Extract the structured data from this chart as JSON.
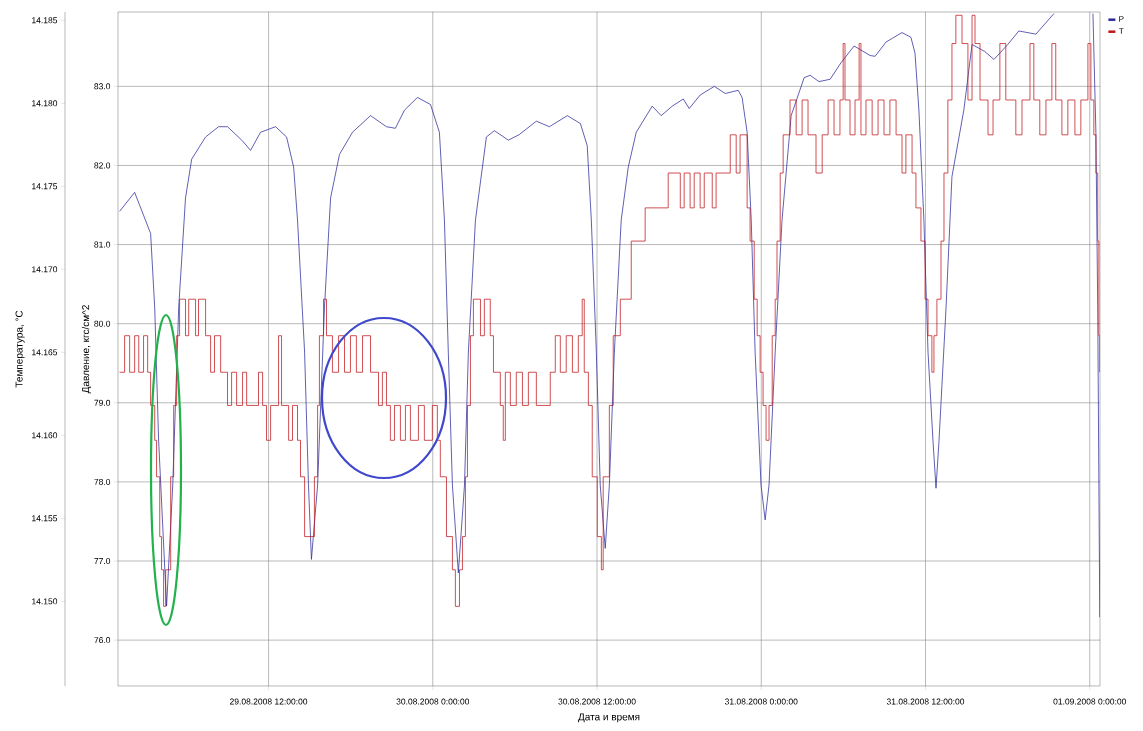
{
  "chart_data": {
    "type": "line",
    "xlabel": "Дата и время",
    "ylabel": "Давление, кгс/см^2",
    "y2label": "Температура, °C",
    "xlim": [
      "2008-08-29T01:00",
      "2008-09-01T00:45"
    ],
    "xticks": [
      {
        "value": "2008-08-29T12:00",
        "label": "29.08.2008 12:00:00"
      },
      {
        "value": "2008-08-30T00:00",
        "label": "30.08.2008 0:00:00"
      },
      {
        "value": "2008-08-30T12:00",
        "label": "30.08.2008 12:00:00"
      },
      {
        "value": "2008-08-31T00:00",
        "label": "31.08.2008 0:00:00"
      },
      {
        "value": "2008-08-31T12:00",
        "label": "31.08.2008 12:00:00"
      },
      {
        "value": "2008-09-01T00:00",
        "label": "01.09.2008 0:00:00"
      }
    ],
    "ylim": [
      75.42,
      83.94
    ],
    "yticks": [
      {
        "value": 76,
        "label": "76.0"
      },
      {
        "value": 77,
        "label": "77.0"
      },
      {
        "value": 78,
        "label": "78.0"
      },
      {
        "value": 79,
        "label": "79.0"
      },
      {
        "value": 80,
        "label": "80.0"
      },
      {
        "value": 81,
        "label": "81.0"
      },
      {
        "value": 82,
        "label": "82.0"
      },
      {
        "value": 83,
        "label": "83.0"
      }
    ],
    "y2lim": [
      14.1449,
      14.1855
    ],
    "y2ticks": [
      {
        "value": 14.15,
        "label": "14.150"
      },
      {
        "value": 14.155,
        "label": "14.155"
      },
      {
        "value": 14.16,
        "label": "14.160"
      },
      {
        "value": 14.165,
        "label": "14.165"
      },
      {
        "value": 14.17,
        "label": "14.170"
      },
      {
        "value": 14.175,
        "label": "14.175"
      },
      {
        "value": 14.18,
        "label": "14.180"
      },
      {
        "value": 14.185,
        "label": "14.185"
      }
    ],
    "grid": true,
    "legend": "top right",
    "series": [
      {
        "name": "P",
        "color": "#2b2b9c",
        "x": [
          "2008-08-29T01:07",
          "2008-08-29T02:13",
          "2008-08-29T03:23",
          "2008-08-29T03:41",
          "2008-08-29T03:58",
          "2008-08-29T04:33",
          "2008-08-29T05:00",
          "2008-08-29T05:26",
          "2008-08-29T05:56",
          "2008-08-29T06:23",
          "2008-08-29T07:24",
          "2008-08-29T08:21",
          "2008-08-29T09:00",
          "2008-08-29T10:06",
          "2008-08-29T10:41",
          "2008-08-29T11:25",
          "2008-08-29T12:31",
          "2008-08-29T13:19",
          "2008-08-29T13:50",
          "2008-08-29T14:07",
          "2008-08-29T14:38",
          "2008-08-29T14:55",
          "2008-08-29T15:08",
          "2008-08-29T15:35",
          "2008-08-29T16:05",
          "2008-08-29T16:32",
          "2008-08-29T17:11",
          "2008-08-29T18:08",
          "2008-08-29T19:27",
          "2008-08-29T20:37",
          "2008-08-29T21:16",
          "2008-08-29T21:56",
          "2008-08-29T22:53",
          "2008-08-29T23:50",
          "2008-08-30T00:29",
          "2008-08-30T00:51",
          "2008-08-30T01:08",
          "2008-08-30T01:26",
          "2008-08-30T01:52",
          "2008-08-30T02:19",
          "2008-08-30T02:36",
          "2008-08-30T03:07",
          "2008-08-30T03:55",
          "2008-08-30T04:30",
          "2008-08-30T05:31",
          "2008-08-30T06:19",
          "2008-08-30T07:34",
          "2008-08-30T08:31",
          "2008-08-30T09:50",
          "2008-08-30T10:47",
          "2008-08-30T11:17",
          "2008-08-30T11:35",
          "2008-08-30T11:57",
          "2008-08-30T12:14",
          "2008-08-30T12:36",
          "2008-08-30T12:54",
          "2008-08-30T13:16",
          "2008-08-30T13:46",
          "2008-08-30T14:17",
          "2008-08-30T14:52",
          "2008-08-30T16:02",
          "2008-08-30T16:41",
          "2008-08-30T17:30",
          "2008-08-30T18:18",
          "2008-08-30T18:44",
          "2008-08-30T19:32",
          "2008-08-30T20:34",
          "2008-08-30T21:22",
          "2008-08-30T22:19",
          "2008-08-30T22:36",
          "2008-08-30T22:58",
          "2008-08-30T23:16",
          "2008-08-30T23:33",
          "2008-08-30T23:59",
          "2008-08-31T00:17",
          "2008-08-31T00:34",
          "2008-08-31T01:01",
          "2008-08-31T01:31",
          "2008-08-31T02:11",
          "2008-08-31T03:08",
          "2008-08-31T03:34",
          "2008-08-31T04:13",
          "2008-08-31T05:02",
          "2008-08-31T05:50",
          "2008-08-31T06:47",
          "2008-08-31T07:57",
          "2008-08-31T08:19",
          "2008-08-31T09:07",
          "2008-08-31T10:17",
          "2008-08-31T10:56",
          "2008-08-31T11:14",
          "2008-08-31T11:31",
          "2008-08-31T11:53",
          "2008-08-31T12:11",
          "2008-08-31T12:33",
          "2008-08-31T12:46",
          "2008-08-31T12:59",
          "2008-08-31T13:30",
          "2008-08-31T13:56",
          "2008-08-31T14:48",
          "2008-08-31T15:24",
          "2008-08-31T16:20",
          "2008-08-31T17:00",
          "2008-08-31T18:01",
          "2008-08-31T18:49",
          "2008-08-31T20:04",
          "2008-08-31T21:23",
          "2008-08-31T22:55",
          "2008-09-01T00:14",
          "2008-09-01T00:27",
          "2008-09-01T00:35",
          "2008-09-01T00:44"
        ],
        "values": [
          81.42,
          81.66,
          81.14,
          80.2,
          78.53,
          76.43,
          77.96,
          80.2,
          81.59,
          82.08,
          82.36,
          82.49,
          82.49,
          82.31,
          82.19,
          82.42,
          82.49,
          82.36,
          81.98,
          81.31,
          79.64,
          77.96,
          77.02,
          77.96,
          80.2,
          81.59,
          82.14,
          82.42,
          82.63,
          82.49,
          82.47,
          82.7,
          82.86,
          82.77,
          82.42,
          81.31,
          79.64,
          77.96,
          76.85,
          77.96,
          79.64,
          81.31,
          82.36,
          82.44,
          82.32,
          82.39,
          82.56,
          82.49,
          82.63,
          82.53,
          82.25,
          81.31,
          79.64,
          77.96,
          77.16,
          77.96,
          79.64,
          81.31,
          81.98,
          82.42,
          82.75,
          82.63,
          82.75,
          82.84,
          82.72,
          82.89,
          83.0,
          82.91,
          82.95,
          82.86,
          82.42,
          81.31,
          79.64,
          77.96,
          77.52,
          77.96,
          79.64,
          81.31,
          82.63,
          83.11,
          83.14,
          83.06,
          83.09,
          83.3,
          83.51,
          83.39,
          83.38,
          83.56,
          83.68,
          83.62,
          83.42,
          82.7,
          81.31,
          79.64,
          78.51,
          77.92,
          78.51,
          80.2,
          81.86,
          82.7,
          83.53,
          83.44,
          83.34,
          83.53,
          83.7,
          83.66,
          83.92,
          null,
          83.92,
          82.42,
          80.2,
          76.29
        ]
      },
      {
        "name": "T",
        "color": "#c0161b",
        "type": "step",
        "axis": "y2",
        "x": [
          "2008-08-29T01:07",
          "2008-08-29T01:29",
          "2008-08-29T01:51",
          "2008-08-29T02:13",
          "2008-08-29T02:31",
          "2008-08-29T02:52",
          "2008-08-29T03:10",
          "2008-08-29T03:23",
          "2008-08-29T03:41",
          "2008-08-29T03:49",
          "2008-08-29T04:03",
          "2008-08-29T04:11",
          "2008-08-29T04:20",
          "2008-08-29T04:29",
          "2008-08-29T04:51",
          "2008-08-29T05:04",
          "2008-08-29T05:17",
          "2008-08-29T05:30",
          "2008-08-29T05:56",
          "2008-08-29T06:10",
          "2008-08-29T06:40",
          "2008-08-29T06:53",
          "2008-08-29T07:24",
          "2008-08-29T07:46",
          "2008-08-29T08:03",
          "2008-08-29T08:30",
          "2008-08-29T09:00",
          "2008-08-29T09:18",
          "2008-08-29T09:40",
          "2008-08-29T10:06",
          "2008-08-29T10:24",
          "2008-08-29T11:16",
          "2008-08-29T11:34",
          "2008-08-29T11:51",
          "2008-08-29T12:09",
          "2008-08-29T12:44",
          "2008-08-29T12:57",
          "2008-08-29T13:28",
          "2008-08-29T13:45",
          "2008-08-29T14:07",
          "2008-08-29T14:20",
          "2008-08-29T14:38",
          "2008-08-29T15:21",
          "2008-08-29T15:35",
          "2008-08-29T15:43",
          "2008-08-29T16:01",
          "2008-08-29T16:14",
          "2008-08-29T16:40",
          "2008-08-29T17:07",
          "2008-08-29T17:33",
          "2008-08-29T17:59",
          "2008-08-29T18:25",
          "2008-08-29T18:52",
          "2008-08-29T19:27",
          "2008-08-29T20:02",
          "2008-08-29T20:19",
          "2008-08-29T20:37",
          "2008-08-29T20:54",
          "2008-08-29T21:12",
          "2008-08-29T21:38",
          "2008-08-29T22:00",
          "2008-08-29T22:22",
          "2008-08-29T22:57",
          "2008-08-29T23:23",
          "2008-08-29T23:58",
          "2008-08-30T00:20",
          "2008-08-30T00:33",
          "2008-08-30T01:00",
          "2008-08-30T01:26",
          "2008-08-30T01:39",
          "2008-08-30T01:57",
          "2008-08-30T02:10",
          "2008-08-30T02:23",
          "2008-08-30T02:32",
          "2008-08-30T02:45",
          "2008-08-30T02:58",
          "2008-08-30T03:29",
          "2008-08-30T03:46",
          "2008-08-30T04:12",
          "2008-08-30T04:26",
          "2008-08-30T04:56",
          "2008-08-30T05:09",
          "2008-08-30T05:18",
          "2008-08-30T05:40",
          "2008-08-30T06:06",
          "2008-08-30T06:33",
          "2008-08-30T06:59",
          "2008-08-30T07:34",
          "2008-08-30T08:35",
          "2008-08-30T08:57",
          "2008-08-30T09:19",
          "2008-08-30T09:45",
          "2008-08-30T10:12",
          "2008-08-30T10:38",
          "2008-08-30T10:55",
          "2008-08-30T11:04",
          "2008-08-30T11:22",
          "2008-08-30T11:39",
          "2008-08-30T12:01",
          "2008-08-30T12:19",
          "2008-08-30T12:27",
          "2008-08-30T12:54",
          "2008-08-30T13:11",
          "2008-08-30T13:42",
          "2008-08-30T14:30",
          "2008-08-30T15:31",
          "2008-08-30T17:12",
          "2008-08-30T18:05",
          "2008-08-30T18:22",
          "2008-08-30T18:48",
          "2008-08-30T19:06",
          "2008-08-30T19:32",
          "2008-08-30T19:50",
          "2008-08-30T20:25",
          "2008-08-30T20:42",
          "2008-08-30T21:44",
          "2008-08-30T22:10",
          "2008-08-30T22:27",
          "2008-08-30T22:58",
          "2008-08-30T23:11",
          "2008-08-30T23:29",
          "2008-08-30T23:42",
          "2008-08-30T23:55",
          "2008-08-31T00:08",
          "2008-08-31T00:21",
          "2008-08-31T00:34",
          "2008-08-31T00:48",
          "2008-08-31T01:01",
          "2008-08-31T01:09",
          "2008-08-31T01:23",
          "2008-08-31T01:36",
          "2008-08-31T02:06",
          "2008-08-31T02:33",
          "2008-08-31T02:59",
          "2008-08-31T03:25",
          "2008-08-31T04:00",
          "2008-08-31T04:27",
          "2008-08-31T04:53",
          "2008-08-31T05:19",
          "2008-08-31T05:45",
          "2008-08-31T05:59",
          "2008-08-31T06:07",
          "2008-08-31T06:29",
          "2008-08-31T06:51",
          "2008-08-31T07:09",
          "2008-08-31T07:17",
          "2008-08-31T07:39",
          "2008-08-31T08:06",
          "2008-08-31T08:32",
          "2008-08-31T08:58",
          "2008-08-31T09:24",
          "2008-08-31T09:51",
          "2008-08-31T10:17",
          "2008-08-31T10:34",
          "2008-08-31T11:01",
          "2008-08-31T11:18",
          "2008-08-31T11:40",
          "2008-08-31T11:58",
          "2008-08-31T12:11",
          "2008-08-31T12:28",
          "2008-08-31T12:37",
          "2008-08-31T12:50",
          "2008-08-31T13:08",
          "2008-08-31T13:21",
          "2008-08-31T13:38",
          "2008-08-31T13:56",
          "2008-08-31T14:13",
          "2008-08-31T14:40",
          "2008-08-31T15:06",
          "2008-08-31T15:24",
          "2008-08-31T15:37",
          "2008-08-31T15:59",
          "2008-08-31T16:34",
          "2008-08-31T16:56",
          "2008-08-31T17:26",
          "2008-08-31T17:52",
          "2008-08-31T18:36",
          "2008-08-31T19:03",
          "2008-08-31T19:38",
          "2008-08-31T19:55",
          "2008-08-31T20:21",
          "2008-08-31T20:48",
          "2008-08-31T21:14",
          "2008-08-31T21:31",
          "2008-08-31T21:58",
          "2008-08-31T22:24",
          "2008-08-31T22:55",
          "2008-08-31T23:21",
          "2008-08-31T23:52",
          "2008-09-01T00:05",
          "2008-09-01T00:18",
          "2008-09-01T00:27",
          "2008-09-01T00:35",
          "2008-09-01T00:40",
          "2008-09-01T00:44"
        ],
        "values": [
          14.1638,
          14.166,
          14.1638,
          14.166,
          14.1638,
          14.166,
          14.1638,
          14.1618,
          14.1597,
          14.1575,
          14.1539,
          14.1519,
          14.1497,
          14.1519,
          14.1575,
          14.1618,
          14.166,
          14.1682,
          14.166,
          14.1682,
          14.166,
          14.1682,
          14.166,
          14.1638,
          14.166,
          14.1638,
          14.1618,
          14.1638,
          14.1618,
          14.1638,
          14.1618,
          14.1638,
          14.1618,
          14.1597,
          14.1618,
          14.166,
          14.1618,
          14.1597,
          14.1618,
          14.1597,
          14.1575,
          14.1539,
          14.1575,
          14.1618,
          14.166,
          14.1682,
          14.166,
          14.1638,
          14.166,
          14.1638,
          14.166,
          14.1638,
          14.166,
          14.1638,
          14.1618,
          14.1638,
          14.1618,
          14.1597,
          14.1618,
          14.1597,
          14.1618,
          14.1597,
          14.1618,
          14.1597,
          14.1618,
          14.1597,
          14.1575,
          14.1539,
          14.1519,
          14.1497,
          14.1519,
          14.1539,
          14.1575,
          14.1618,
          14.166,
          14.1682,
          14.166,
          14.1682,
          14.166,
          14.1638,
          14.1618,
          14.1597,
          14.1638,
          14.1618,
          14.1638,
          14.1618,
          14.1638,
          14.1618,
          14.1638,
          14.166,
          14.1638,
          14.166,
          14.1638,
          14.166,
          14.1682,
          14.1638,
          14.1618,
          14.1575,
          14.1539,
          14.1519,
          14.1575,
          14.1618,
          14.166,
          14.1682,
          14.1717,
          14.1737,
          14.1758,
          14.1737,
          14.1758,
          14.1737,
          14.1758,
          14.1737,
          14.1758,
          14.1737,
          14.1758,
          14.1781,
          14.1758,
          14.1781,
          14.1737,
          14.1717,
          14.1682,
          14.166,
          14.1638,
          14.1618,
          14.1597,
          14.1618,
          14.166,
          14.1682,
          14.1717,
          14.1758,
          14.1781,
          14.1802,
          14.1781,
          14.1802,
          14.1781,
          14.1758,
          14.1781,
          14.1802,
          14.1781,
          14.1802,
          14.1836,
          14.1802,
          14.1781,
          14.1802,
          14.1836,
          14.1781,
          14.1802,
          14.1781,
          14.1802,
          14.1781,
          14.1802,
          14.1781,
          14.1758,
          14.1781,
          14.1758,
          14.1737,
          14.1717,
          14.1682,
          14.166,
          14.1638,
          14.166,
          14.1682,
          14.1717,
          14.1758,
          14.1802,
          14.1836,
          14.1853,
          14.1836,
          14.1802,
          14.1853,
          14.1836,
          14.1802,
          14.1781,
          14.1802,
          14.1836,
          14.1802,
          14.1781,
          14.1802,
          14.1836,
          14.1802,
          14.1781,
          14.1802,
          14.1836,
          14.1802,
          14.1781,
          14.1802,
          14.1781,
          14.1802,
          14.1836,
          14.1802,
          14.1781,
          14.1758,
          14.1717,
          14.166,
          14.1638
        ]
      }
    ]
  }
}
